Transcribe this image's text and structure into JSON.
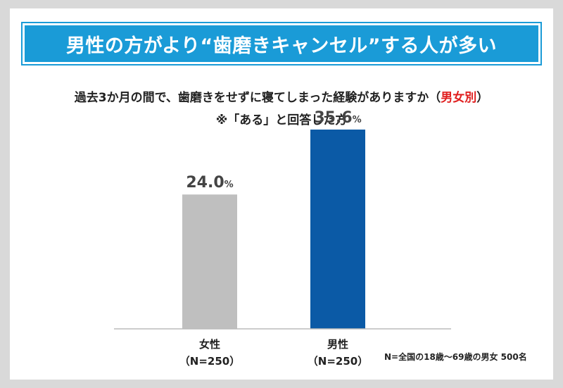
{
  "banner": {
    "title": "男性の方がより“歯磨きキャンセル”する人が多い"
  },
  "question": {
    "text": "過去3か月の間で、歯磨きをせずに寝てしまった経験がありますか（",
    "highlight": "男女別",
    "close": "）",
    "sub": "※「ある」と回答した方"
  },
  "chart_data": {
    "type": "bar",
    "categories": [
      "女性",
      "男性"
    ],
    "sample_labels": [
      "（N=250）",
      "（N=250）"
    ],
    "values": [
      24.0,
      35.6
    ],
    "value_labels": [
      "24.0",
      "35.6"
    ],
    "unit": "%",
    "colors": [
      "#bfbfbf",
      "#0b5aa6"
    ],
    "ylim": [
      0,
      40
    ],
    "grid": false
  },
  "footnote": "N=全国の18歳～69歳の男女 500名"
}
